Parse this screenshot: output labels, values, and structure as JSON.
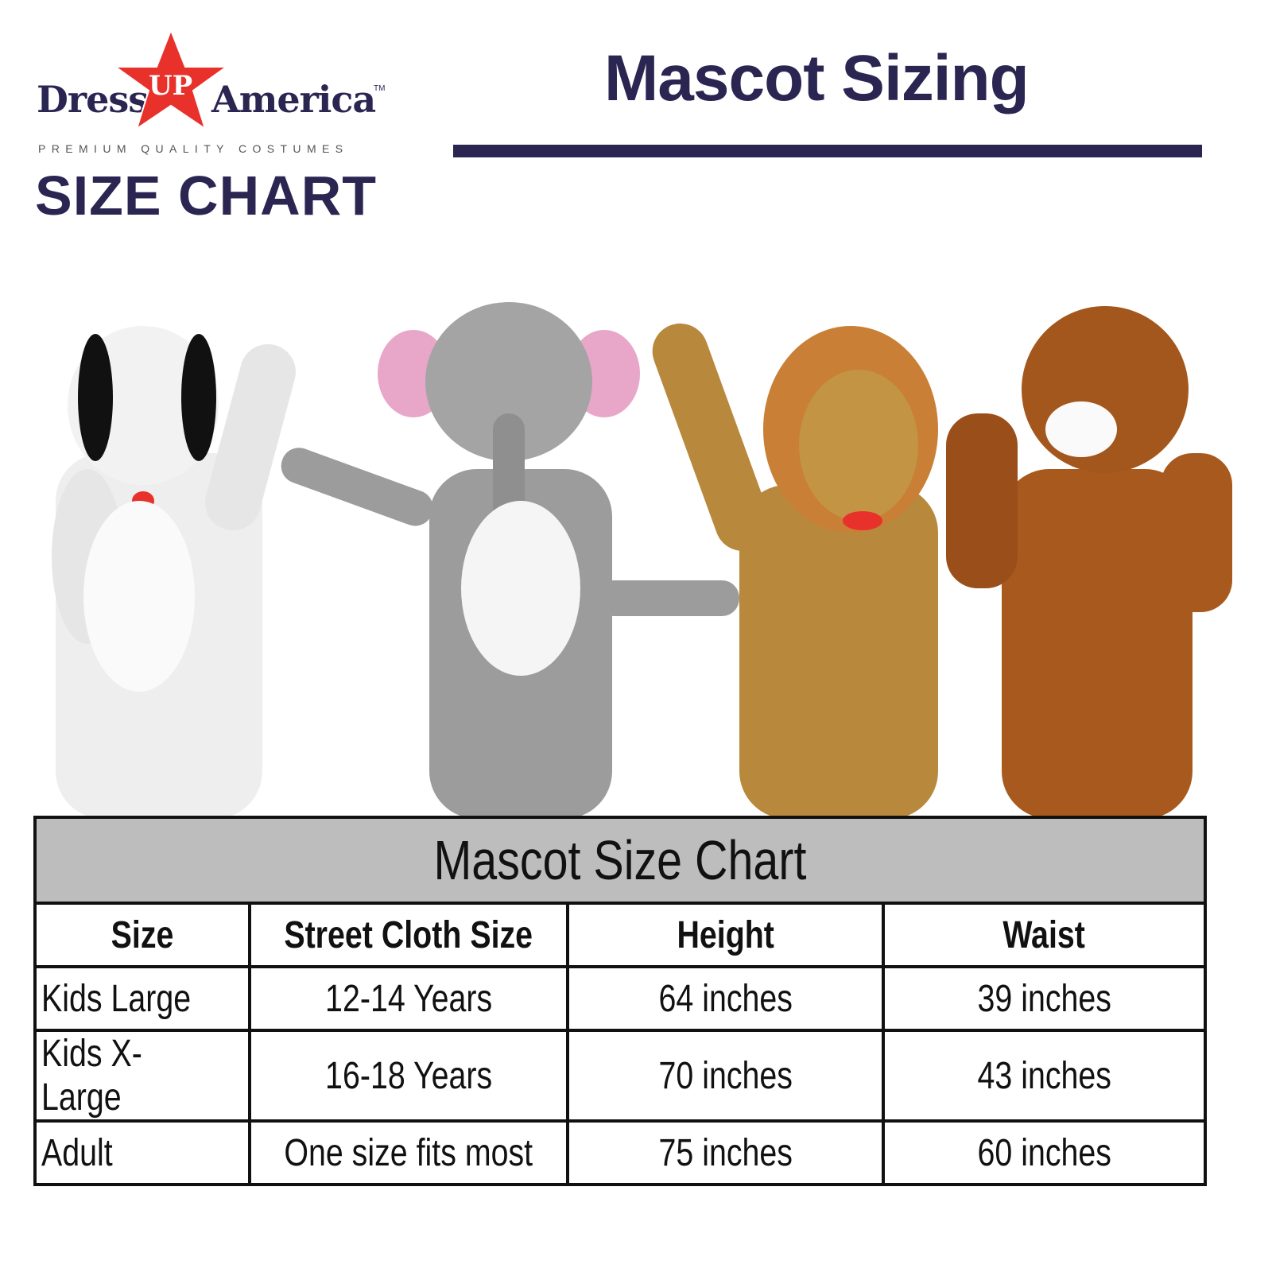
{
  "logo": {
    "brand_left": "Dress",
    "brand_mid": "UP",
    "brand_right": "America",
    "trademark": "TM",
    "tagline": "PREMIUM QUALITY COSTUMES",
    "subtitle": "SIZE CHART",
    "colors": {
      "navy": "#2b2552",
      "star": "#e8312b"
    }
  },
  "header": {
    "title": "Mascot Sizing"
  },
  "mascots": [
    "dalmatian",
    "elephant",
    "lion",
    "tiger"
  ],
  "table": {
    "caption": "Mascot Size Chart",
    "columns": [
      "Size",
      "Street Cloth Size",
      "Height",
      "Waist"
    ],
    "rows": [
      [
        "Kids Large",
        "12-14 Years",
        "64 inches",
        "39 inches"
      ],
      [
        "Kids X-Large",
        "16-18 Years",
        "70 inches",
        "43 inches"
      ],
      [
        "Adult",
        "One size fits most",
        "75 inches",
        "60 inches"
      ]
    ]
  }
}
